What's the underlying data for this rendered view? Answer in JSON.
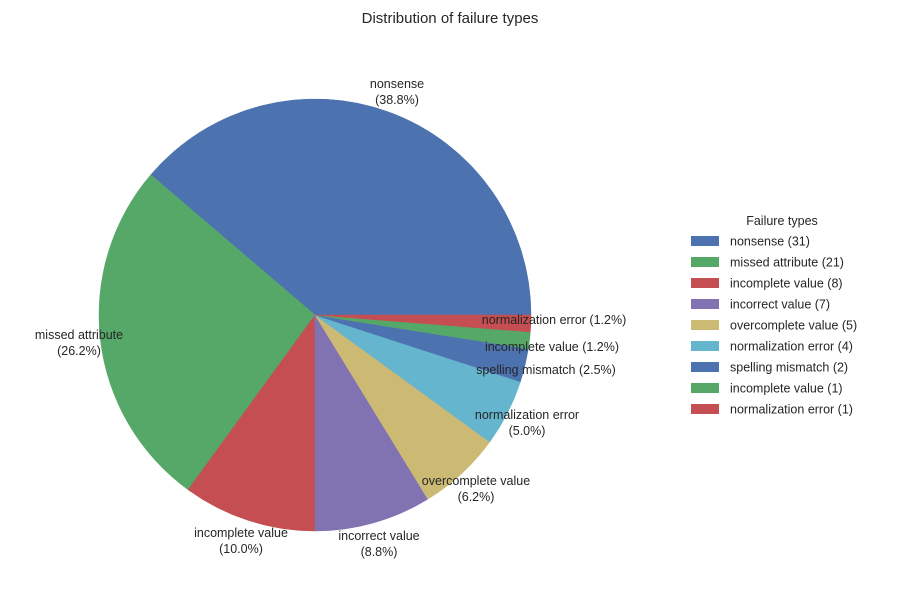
{
  "chart_data": {
    "type": "pie",
    "title": "Distribution of failure types",
    "legend_title": "Failure types",
    "legend_placement": "right",
    "slices": [
      {
        "label": "nonsense",
        "value": 31,
        "pct_label": "(38.8%)",
        "legend": "nonsense (31)",
        "color": "#4C72B0"
      },
      {
        "label": "missed attribute",
        "value": 21,
        "pct_label": "(26.2%)",
        "legend": "missed attribute (21)",
        "color": "#55A868"
      },
      {
        "label": "incomplete value",
        "value": 8,
        "pct_label": "(10.0%)",
        "legend": "incomplete value (8)",
        "color": "#C44E52"
      },
      {
        "label": "incorrect value",
        "value": 7,
        "pct_label": "(8.8%)",
        "legend": "incorrect value (7)",
        "color": "#8172B2"
      },
      {
        "label": "overcomplete value",
        "value": 5,
        "pct_label": "(6.2%)",
        "legend": "overcomplete value (5)",
        "color": "#CCB974"
      },
      {
        "label": "normalization error",
        "value": 4,
        "pct_label": "(5.0%)",
        "legend": "normalization error (4)",
        "color": "#64B5CD"
      },
      {
        "label": "spelling mismatch (2.5%)",
        "value": 2,
        "pct_label": "",
        "legend": "spelling mismatch (2)",
        "color": "#4C72B0"
      },
      {
        "label": "incomplete value (1.2%)",
        "value": 1,
        "pct_label": "",
        "legend": " incomplete value (1)",
        "color": "#55A868"
      },
      {
        "label": "normalization error (1.2%)",
        "value": 1,
        "pct_label": "",
        "legend": " normalization error (1)",
        "color": "#C44E52"
      }
    ]
  }
}
